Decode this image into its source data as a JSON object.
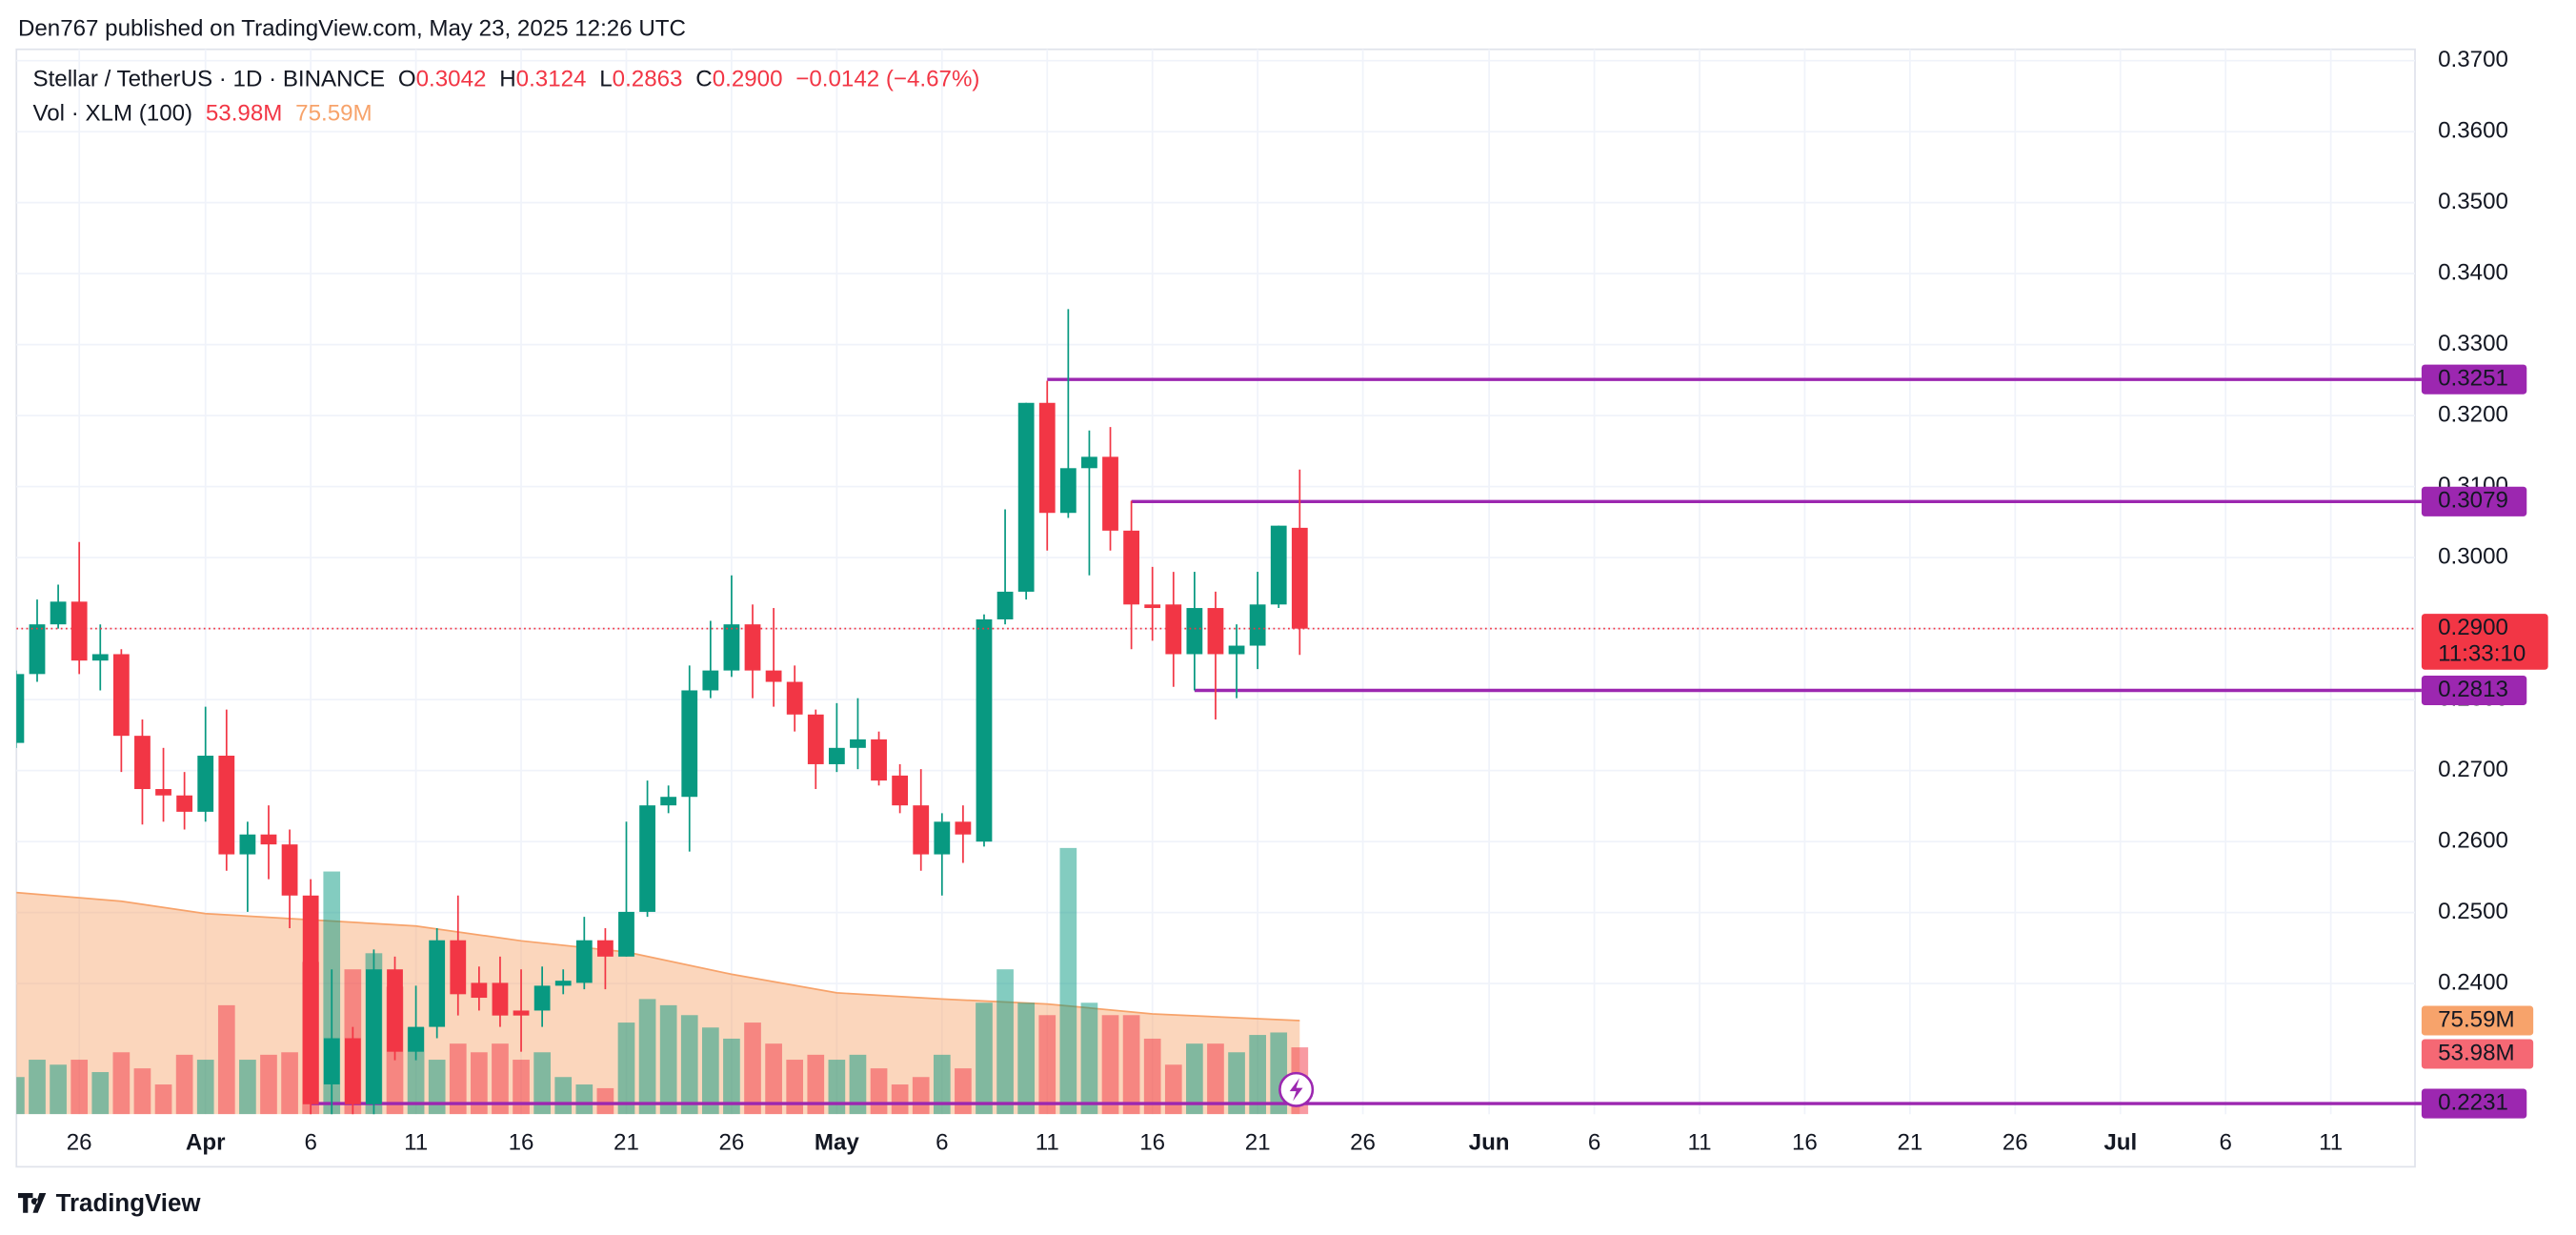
{
  "header": {
    "publisher": "Den767 published on TradingView.com, May 23, 2025 12:26 UTC"
  },
  "footer": {
    "brand": "TradingView"
  },
  "chart_data": {
    "type": "candlestick",
    "title": "Stellar / TetherUS · 1D · BINANCE",
    "ohlc_legend": [
      {
        "key": "O",
        "value": "0.3042"
      },
      {
        "key": "H",
        "value": "0.3124"
      },
      {
        "key": "L",
        "value": "0.2863"
      },
      {
        "key": "C",
        "value": "0.2900"
      }
    ],
    "change": "−0.0142 (−4.67%)",
    "volume_legend": {
      "title": "Vol · XLM (100)",
      "volume": "53.98M",
      "ma": "75.59M"
    },
    "x": [
      "2025-03-23",
      "2025-03-24",
      "2025-03-25",
      "2025-03-26",
      "2025-03-27",
      "2025-03-28",
      "2025-03-29",
      "2025-03-30",
      "2025-03-31",
      "2025-04-01",
      "2025-04-02",
      "2025-04-03",
      "2025-04-04",
      "2025-04-05",
      "2025-04-06",
      "2025-04-07",
      "2025-04-08",
      "2025-04-09",
      "2025-04-10",
      "2025-04-11",
      "2025-04-12",
      "2025-04-13",
      "2025-04-14",
      "2025-04-15",
      "2025-04-16",
      "2025-04-17",
      "2025-04-18",
      "2025-04-19",
      "2025-04-20",
      "2025-04-21",
      "2025-04-22",
      "2025-04-23",
      "2025-04-24",
      "2025-04-25",
      "2025-04-26",
      "2025-04-27",
      "2025-04-28",
      "2025-04-29",
      "2025-04-30",
      "2025-05-01",
      "2025-05-02",
      "2025-05-03",
      "2025-05-04",
      "2025-05-05",
      "2025-05-06",
      "2025-05-07",
      "2025-05-08",
      "2025-05-09",
      "2025-05-10",
      "2025-05-11",
      "2025-05-12",
      "2025-05-13",
      "2025-05-14",
      "2025-05-15",
      "2025-05-16",
      "2025-05-17",
      "2025-05-18",
      "2025-05-19",
      "2025-05-20",
      "2025-05-21",
      "2025-05-22",
      "2025-05-23"
    ],
    "open": [
      0.2739,
      0.2836,
      0.2906,
      0.2938,
      0.2855,
      0.2864,
      0.2749,
      0.2674,
      0.2665,
      0.2642,
      0.2721,
      0.2582,
      0.261,
      0.2596,
      0.2524,
      0.2258,
      0.2323,
      0.223,
      0.242,
      0.2304,
      0.2339,
      0.2461,
      0.2401,
      0.2401,
      0.2362,
      0.2362,
      0.2397,
      0.2401,
      0.2461,
      0.2438,
      0.2501,
      0.2651,
      0.2663,
      0.2813,
      0.2841,
      0.2906,
      0.2841,
      0.2825,
      0.2779,
      0.2709,
      0.2732,
      0.2744,
      0.2693,
      0.2651,
      0.2582,
      0.2628,
      0.26,
      0.2913,
      0.2952,
      0.3218,
      0.3063,
      0.3126,
      0.3142,
      0.3038,
      0.2934,
      0.2934,
      0.2864,
      0.2929,
      0.2864,
      0.2876,
      0.2934,
      0.3042
    ],
    "high": [
      0.2841,
      0.2941,
      0.2962,
      0.3022,
      0.2906,
      0.2871,
      0.2772,
      0.2732,
      0.2698,
      0.279,
      0.2786,
      0.2628,
      0.2651,
      0.2617,
      0.2547,
      0.242,
      0.2339,
      0.2448,
      0.2438,
      0.2397,
      0.2478,
      0.2524,
      0.2424,
      0.2438,
      0.242,
      0.2424,
      0.242,
      0.2494,
      0.2478,
      0.2628,
      0.2686,
      0.2679,
      0.2848,
      0.2911,
      0.2975,
      0.2934,
      0.2929,
      0.2848,
      0.2786,
      0.2795,
      0.2802,
      0.2755,
      0.2709,
      0.2702,
      0.264,
      0.2651,
      0.292,
      0.3068,
      0.3218,
      0.3249,
      0.335,
      0.3179,
      0.3184,
      0.308,
      0.2987,
      0.298,
      0.298,
      0.2952,
      0.2906,
      0.298,
      0.3045,
      0.3124
    ],
    "low": [
      0.2732,
      0.2825,
      0.29,
      0.2836,
      0.2813,
      0.2698,
      0.2624,
      0.2628,
      0.2617,
      0.2628,
      0.2559,
      0.2501,
      0.2547,
      0.2478,
      0.2211,
      0.2211,
      0.2211,
      0.2211,
      0.2292,
      0.2292,
      0.2323,
      0.2355,
      0.2362,
      0.2339,
      0.2304,
      0.2339,
      0.2385,
      0.2392,
      0.2392,
      0.2438,
      0.2494,
      0.264,
      0.2586,
      0.2802,
      0.2832,
      0.2802,
      0.279,
      0.2755,
      0.2674,
      0.2698,
      0.2702,
      0.2679,
      0.264,
      0.2559,
      0.2524,
      0.257,
      0.2593,
      0.2906,
      0.2941,
      0.301,
      0.3056,
      0.2975,
      0.301,
      0.2871,
      0.2883,
      0.2818,
      0.2813,
      0.2772,
      0.2802,
      0.2843,
      0.2929,
      0.2863
    ],
    "close": [
      0.2836,
      0.2906,
      0.2938,
      0.2855,
      0.2864,
      0.2749,
      0.2674,
      0.2665,
      0.2642,
      0.2721,
      0.2582,
      0.261,
      0.2596,
      0.2524,
      0.223,
      0.2323,
      0.223,
      0.242,
      0.2304,
      0.2339,
      0.2461,
      0.2385,
      0.238,
      0.2355,
      0.2355,
      0.2397,
      0.2404,
      0.2461,
      0.2438,
      0.2501,
      0.2651,
      0.2663,
      0.2813,
      0.2841,
      0.2906,
      0.2841,
      0.2825,
      0.2779,
      0.2709,
      0.2732,
      0.2744,
      0.2686,
      0.2651,
      0.2582,
      0.2628,
      0.261,
      0.2913,
      0.2952,
      0.3218,
      0.3063,
      0.3126,
      0.3142,
      0.3038,
      0.2934,
      0.2929,
      0.2864,
      0.2929,
      0.2864,
      0.2876,
      0.2934,
      0.3045,
      0.29
    ],
    "volume": [
      30,
      44,
      40,
      44,
      34,
      50,
      37,
      24,
      48,
      44,
      88,
      44,
      48,
      50,
      123,
      196,
      117,
      130,
      103,
      70,
      44,
      57,
      50,
      57,
      44,
      50,
      30,
      24,
      21,
      74,
      93,
      88,
      80,
      70,
      61,
      74,
      57,
      44,
      48,
      44,
      48,
      37,
      24,
      30,
      48,
      37,
      90,
      117,
      90,
      80,
      215,
      90,
      80,
      80,
      61,
      40,
      57,
      57,
      50,
      64,
      66,
      53.98
    ],
    "volume_ma": {
      "x": [
        "2025-03-23",
        "2025-03-28",
        "2025-04-01",
        "2025-04-06",
        "2025-04-11",
        "2025-04-16",
        "2025-04-21",
        "2025-04-26",
        "2025-05-01",
        "2025-05-06",
        "2025-05-11",
        "2025-05-16",
        "2025-05-23"
      ],
      "values": [
        179,
        172,
        162,
        157,
        152,
        140,
        131,
        113,
        98,
        93,
        89,
        81,
        75.59
      ]
    },
    "xlim": [
      "2025-03-22",
      "2025-07-15"
    ],
    "ylim": [
      0.2216,
      0.3716
    ],
    "volume_ylim": [
      0,
      860
    ],
    "yticks": [
      {
        "value": 0.37,
        "label": "0.3700"
      },
      {
        "value": 0.36,
        "label": "0.3600"
      },
      {
        "value": 0.35,
        "label": "0.3500"
      },
      {
        "value": 0.34,
        "label": "0.3400"
      },
      {
        "value": 0.33,
        "label": "0.3300"
      },
      {
        "value": 0.32,
        "label": "0.3200"
      },
      {
        "value": 0.31,
        "label": "0.3100"
      },
      {
        "value": 0.3,
        "label": "0.3000"
      },
      {
        "value": 0.29,
        "label": "0.2900"
      },
      {
        "value": 0.28,
        "label": "0.2800"
      },
      {
        "value": 0.27,
        "label": "0.2700"
      },
      {
        "value": 0.26,
        "label": "0.2600"
      },
      {
        "value": 0.25,
        "label": "0.2500"
      },
      {
        "value": 0.24,
        "label": "0.2400"
      }
    ],
    "xticks": [
      {
        "value": "2025-03-26",
        "label": "26"
      },
      {
        "value": "2025-04-01",
        "label": "Apr"
      },
      {
        "value": "2025-04-06",
        "label": "6"
      },
      {
        "value": "2025-04-11",
        "label": "11"
      },
      {
        "value": "2025-04-16",
        "label": "16"
      },
      {
        "value": "2025-04-21",
        "label": "21"
      },
      {
        "value": "2025-04-26",
        "label": "26"
      },
      {
        "value": "2025-05-01",
        "label": "May"
      },
      {
        "value": "2025-05-06",
        "label": "6"
      },
      {
        "value": "2025-05-11",
        "label": "11"
      },
      {
        "value": "2025-05-16",
        "label": "16"
      },
      {
        "value": "2025-05-21",
        "label": "21"
      },
      {
        "value": "2025-05-26",
        "label": "26"
      },
      {
        "value": "2025-06-01",
        "label": "Jun"
      },
      {
        "value": "2025-06-06",
        "label": "6"
      },
      {
        "value": "2025-06-11",
        "label": "11"
      },
      {
        "value": "2025-06-16",
        "label": "16"
      },
      {
        "value": "2025-06-21",
        "label": "21"
      },
      {
        "value": "2025-06-26",
        "label": "26"
      },
      {
        "value": "2025-07-01",
        "label": "Jul"
      },
      {
        "value": "2025-07-06",
        "label": "6"
      },
      {
        "value": "2025-07-11",
        "label": "11"
      }
    ],
    "levels": [
      {
        "value": 0.3251,
        "label": "0.3251",
        "from": "2025-05-11"
      },
      {
        "value": 0.3079,
        "label": "0.3079",
        "from": "2025-05-15"
      },
      {
        "value": 0.2813,
        "label": "0.2813",
        "from": "2025-05-18"
      },
      {
        "value": 0.2231,
        "label": "0.2231",
        "from": "2025-04-06"
      }
    ],
    "last_price": {
      "value": 0.29,
      "label": "0.2900",
      "countdown": "11:33:10"
    },
    "up_color": "#089981",
    "down_color": "#f23645",
    "level_color": "#9c27b0",
    "ma_color": "#f7a36b",
    "grid": true
  }
}
